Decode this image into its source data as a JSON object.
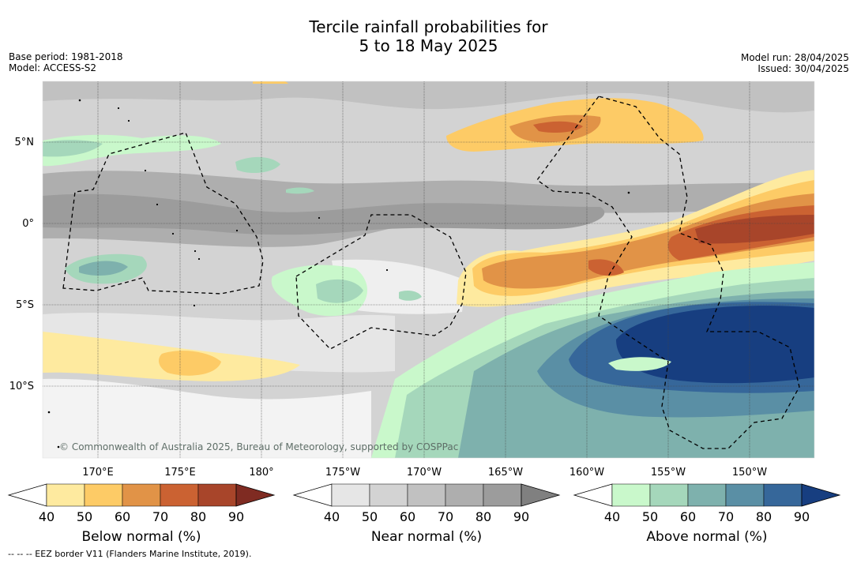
{
  "title": {
    "line1": "Tercile rainfall probabilities for",
    "line2": "5 to 18 May 2025"
  },
  "meta_left": {
    "base_period": "Base period: 1981-2018",
    "model": "Model: ACCESS-S2"
  },
  "meta_right": {
    "model_run": "Model run: 28/04/2025",
    "issued": "Issued: 30/04/2025"
  },
  "lat_labels": [
    "5°N",
    "0°",
    "5°S",
    "10°S"
  ],
  "lon_labels": [
    "170°E",
    "175°E",
    "180°",
    "175°W",
    "170°W",
    "165°W",
    "160°W",
    "155°W",
    "150°W"
  ],
  "copyright": "© Commonwealth of Australia 2025, Bureau of Meteorology, supported by COSPPac",
  "colorbars": [
    {
      "title": "Below normal (%)",
      "ticks": [
        "40",
        "50",
        "60",
        "70",
        "80",
        "90"
      ],
      "colors": [
        "#ffffff",
        "#feea9f",
        "#fdcb66",
        "#e19347",
        "#cb6232",
        "#a8452a",
        "#7f2b22"
      ]
    },
    {
      "title": "Near normal (%)",
      "ticks": [
        "40",
        "50",
        "60",
        "70",
        "80",
        "90"
      ],
      "colors": [
        "#ffffff",
        "#e6e6e6",
        "#d3d3d3",
        "#c1c1c1",
        "#aeaeae",
        "#9c9c9c",
        "#808080"
      ]
    },
    {
      "title": "Above normal (%)",
      "ticks": [
        "40",
        "50",
        "60",
        "70",
        "80",
        "90"
      ],
      "colors": [
        "#ffffff",
        "#c9f8cb",
        "#a5d7bb",
        "#7eb1ad",
        "#5a8fa5",
        "#36679a",
        "#173e80"
      ]
    }
  ],
  "footnote": "--  --  -- EEZ border V11 (Flanders Marine Institute, 2019)."
}
